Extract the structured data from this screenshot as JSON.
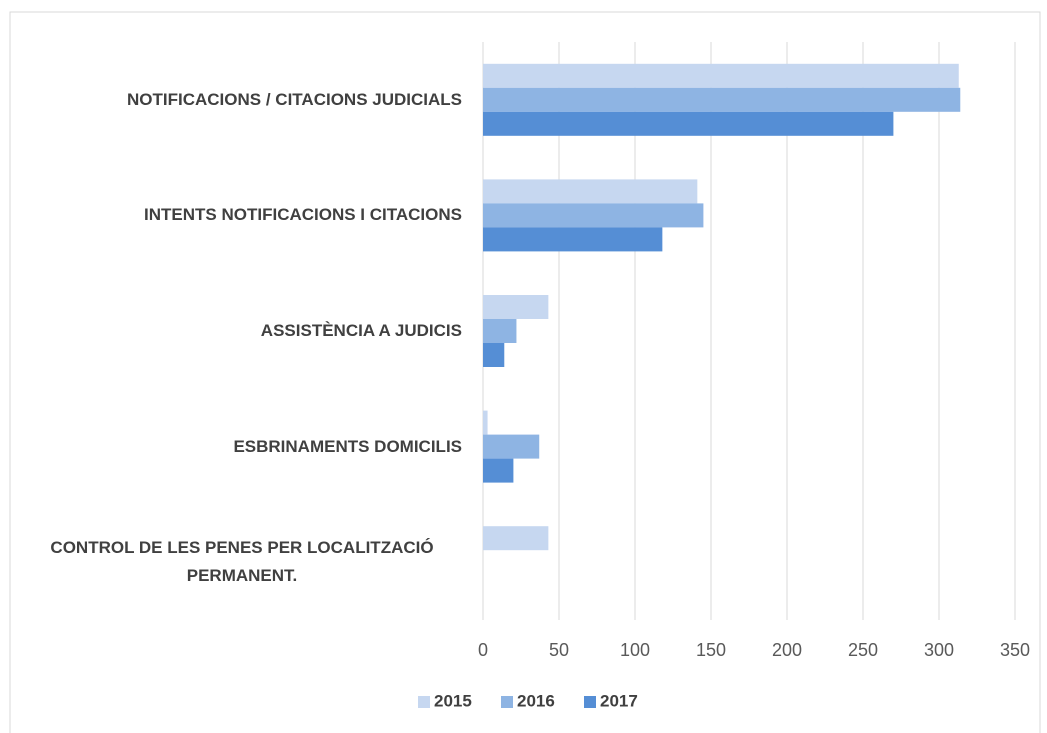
{
  "chart_data": {
    "type": "hbar",
    "categories": [
      "NOTIFICACIONS / CITACIONS JUDICIALS",
      "INTENTS NOTIFICACIONS I CITACIONS",
      "ASSISTÈNCIA A JUDICIS",
      "ESBRINAMENTS DOMICILIS",
      "CONTROL DE LES PENES PER LOCALITZACIÓ PERMANENT."
    ],
    "series": [
      {
        "name": "2015",
        "color": "#c6d7f0",
        "values": [
          313,
          141,
          43,
          3,
          43
        ]
      },
      {
        "name": "2016",
        "color": "#8eb4e3",
        "values": [
          314,
          145,
          22,
          37,
          0
        ]
      },
      {
        "name": "2017",
        "color": "#558ed5",
        "values": [
          270,
          118,
          14,
          20,
          0
        ]
      }
    ],
    "xlim": [
      0,
      350
    ],
    "xticks": [
      0,
      50,
      100,
      150,
      200,
      250,
      300,
      350
    ],
    "grid": true,
    "legend": "bottom"
  }
}
